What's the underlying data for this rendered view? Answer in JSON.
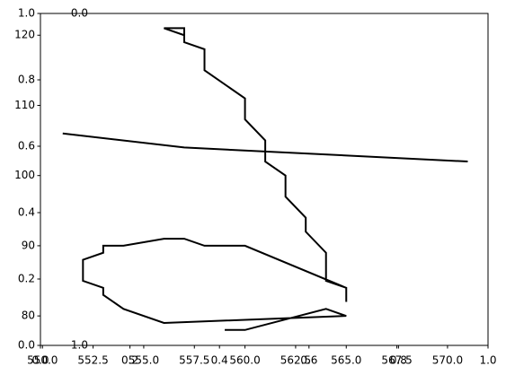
{
  "chart_data": {
    "type": "line",
    "series": [
      {
        "color": "#000000",
        "x": [
          557,
          556,
          557,
          557,
          558,
          558,
          560,
          560,
          561,
          561,
          562,
          562,
          563,
          563,
          564,
          564,
          565,
          565,
          565,
          560,
          558,
          557,
          556,
          554,
          553,
          553,
          552,
          552,
          553,
          553,
          554,
          556,
          565,
          564,
          560,
          559
        ],
        "values": [
          120,
          121,
          121,
          119,
          118,
          115,
          111,
          108,
          105,
          102,
          100,
          97,
          94,
          92,
          89,
          85,
          84,
          82,
          84,
          90,
          90,
          91,
          91,
          90,
          90,
          89,
          88,
          85,
          84,
          83,
          81,
          79,
          80,
          81,
          78,
          78
        ]
      },
      {
        "color": "#000000",
        "x": [
          551,
          557,
          571
        ],
        "values": [
          106,
          104,
          102
        ]
      }
    ],
    "xlim": [
      549.9,
      572.0
    ],
    "xticks": [
      {
        "value": 550,
        "label": "550.0"
      },
      {
        "value": 552.5,
        "label": "552.5"
      },
      {
        "value": 555,
        "label": "555.0"
      },
      {
        "value": 557.5,
        "label": "557.5"
      },
      {
        "value": 560,
        "label": "560.0"
      },
      {
        "value": 562.5,
        "label": "562.5"
      },
      {
        "value": 565,
        "label": "565.0"
      },
      {
        "value": 567.5,
        "label": "567.5"
      },
      {
        "value": 570,
        "label": "570.0"
      }
    ],
    "ylim": [
      75.8,
      123.1
    ],
    "yticks": [
      80,
      90,
      100,
      110,
      120
    ],
    "x2lim": [
      0,
      1
    ],
    "x2ticks": [
      {
        "value": 0,
        "label": "0.0"
      },
      {
        "value": 0.2,
        "label": "0.2"
      },
      {
        "value": 0.4,
        "label": "0.4"
      },
      {
        "value": 0.6,
        "label": "0.6"
      },
      {
        "value": 0.8,
        "label": "0.8"
      },
      {
        "value": 1,
        "label": "1.0"
      }
    ],
    "y2lim": [
      0,
      1
    ],
    "y2ticks": [
      {
        "value": 0,
        "label": "0.0"
      },
      {
        "value": 0.2,
        "label": "0.2"
      },
      {
        "value": 0.4,
        "label": "0.4"
      },
      {
        "value": 0.6,
        "label": "0.6"
      },
      {
        "value": 0.8,
        "label": "0.8"
      },
      {
        "value": 1,
        "label": "1.0"
      }
    ],
    "y3lim": [
      1,
      0
    ],
    "y3ticks": [
      {
        "value": 0,
        "label": "0.0"
      },
      {
        "value": 1,
        "label": "1.0"
      }
    ]
  }
}
